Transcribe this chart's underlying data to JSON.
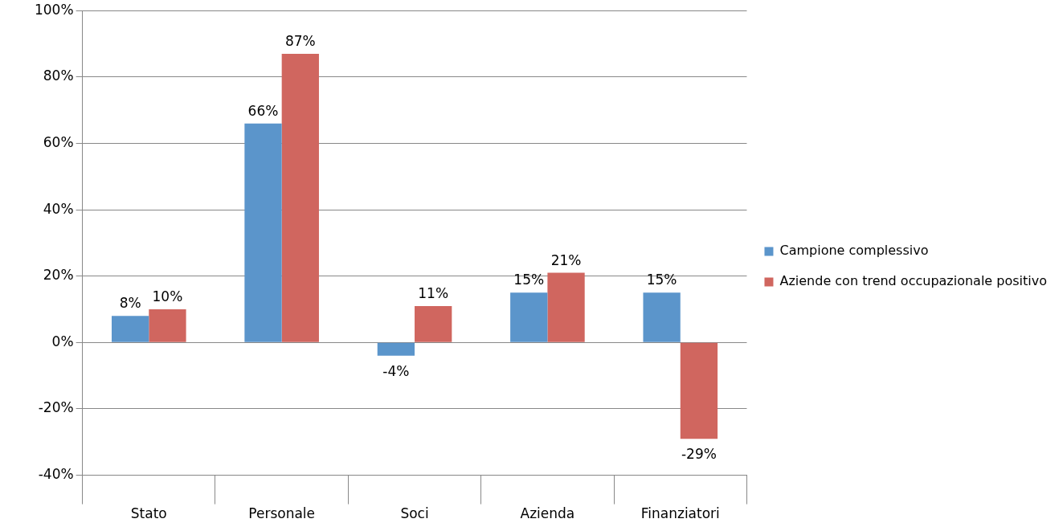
{
  "chart_data": {
    "type": "bar",
    "categories": [
      "Stato",
      "Personale",
      "Soci",
      "Azienda",
      "Finanziatori"
    ],
    "series": [
      {
        "name": "Campione complessivo",
        "color": "#5b95cb",
        "values": [
          8,
          66,
          -4,
          15,
          15
        ],
        "value_labels": [
          "8%",
          "66%",
          "-4%",
          "15%",
          "15%"
        ]
      },
      {
        "name": "Aziende con trend occupazionale positivo",
        "color": "#d0665f",
        "values": [
          10,
          87,
          11,
          21,
          -29
        ],
        "value_labels": [
          "10%",
          "87%",
          "11%",
          "21%",
          "-29%"
        ]
      }
    ],
    "ylim": [
      -40,
      100
    ],
    "yticks": [
      {
        "value": -40,
        "label": "-40%"
      },
      {
        "value": -20,
        "label": "-20%"
      },
      {
        "value": 0,
        "label": "0%"
      },
      {
        "value": 20,
        "label": "20%"
      },
      {
        "value": 40,
        "label": "40%"
      },
      {
        "value": 60,
        "label": "60%"
      },
      {
        "value": 80,
        "label": "80%"
      },
      {
        "value": 100,
        "label": "100%"
      }
    ],
    "grid": "y",
    "legend": "right"
  }
}
